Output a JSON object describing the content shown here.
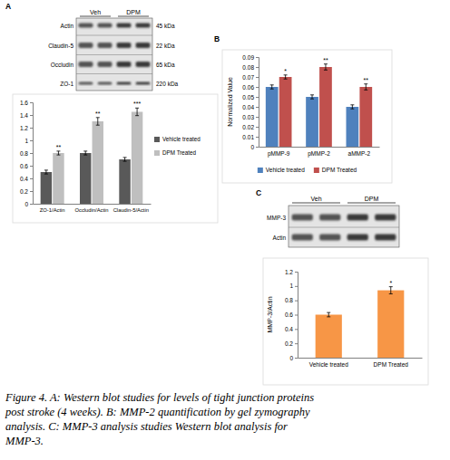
{
  "chart_data": [
    {
      "type": "bar",
      "categories": [
        "ZO-1/Actin",
        "Occludin/Actin",
        "Claudin-5/Actin"
      ],
      "series": [
        {
          "name": "Vehicle treated",
          "color": "#595959",
          "values": [
            0.5,
            0.8,
            0.7
          ],
          "errors": [
            0.03,
            0.03,
            0.03
          ]
        },
        {
          "name": "DPM Treated",
          "color": "#bfbfbf",
          "values": [
            0.8,
            1.3,
            1.45
          ],
          "errors": [
            0.03,
            0.06,
            0.06
          ],
          "annotations": [
            "**",
            "**",
            "***"
          ]
        }
      ],
      "ylim": [
        0,
        1.6
      ],
      "yticks": [
        0,
        0.2,
        0.4,
        0.6,
        0.8,
        1,
        1.2,
        1.4,
        1.6
      ],
      "grid": false,
      "legend": "right"
    },
    {
      "type": "bar",
      "ylabel": "Normalized Value",
      "categories": [
        "pMMP-9",
        "pMMP-2",
        "aMMP-2"
      ],
      "series": [
        {
          "name": "Vehicle treated",
          "color": "#4f81bd",
          "values": [
            0.06,
            0.05,
            0.04
          ],
          "errors": [
            0.002,
            0.002,
            0.002
          ]
        },
        {
          "name": "DPM Treated",
          "color": "#c0504d",
          "values": [
            0.07,
            0.08,
            0.06
          ],
          "errors": [
            0.002,
            0.003,
            0.003
          ],
          "annotations": [
            "*",
            "**",
            "**"
          ]
        }
      ],
      "ylim": [
        0,
        0.09
      ],
      "yticks": [
        0,
        0.01,
        0.02,
        0.03,
        0.04,
        0.05,
        0.06,
        0.07,
        0.08,
        0.09
      ],
      "grid": false,
      "legend": "bottom"
    },
    {
      "type": "bar",
      "ylabel": "MMP-3/Actin",
      "categories": [
        "Vehicle treated",
        "DPM Treated"
      ],
      "values": [
        0.6,
        0.94
      ],
      "errors": [
        0.03,
        0.05
      ],
      "annotations": [
        null,
        "*"
      ],
      "color": "#f79646",
      "ylim": [
        0,
        1.2
      ],
      "yticks": [
        0,
        0.2,
        0.4,
        0.6,
        0.8,
        1,
        1.2
      ],
      "grid": false
    }
  ],
  "panel_labels": [
    "A",
    "B",
    "C"
  ],
  "blots": [
    {
      "lanes": [
        "Veh",
        "DPM"
      ],
      "rows": [
        {
          "label": "Actin",
          "size": "45 kDa"
        },
        {
          "label": "Claudin-5",
          "size": "22 kDa"
        },
        {
          "label": "Occludin",
          "size": "65 kDa"
        },
        {
          "label": "ZO-1",
          "size": "220 kDa"
        }
      ]
    },
    {
      "lanes": [
        "Veh",
        "DPM"
      ],
      "rows": [
        {
          "label": "MMP-3"
        },
        {
          "label": "Actin"
        }
      ]
    }
  ],
  "caption": [
    "Figure 4. A: Western blot studies for levels of tight junction proteins",
    "post stroke (4 weeks). B: MMP-2 quantification by gel zymography",
    "analysis. C: MMP-3 analysis studies Western blot analysis for",
    "MMP-3."
  ]
}
